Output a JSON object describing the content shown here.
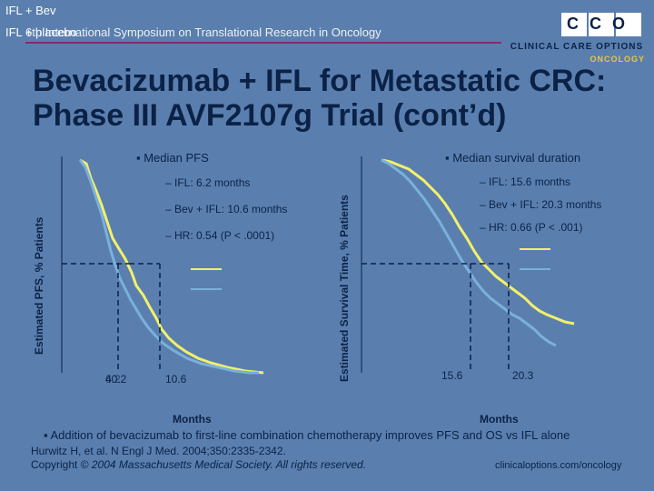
{
  "overlay": {
    "legend_top1": "IFL + Bev",
    "legend_top2": "IFL + placebo"
  },
  "header": {
    "conference": "6th International Symposium on Translational Research in Oncology",
    "logo_line1": "CLINICAL CARE OPTIONS",
    "logo_line2": "ONCOLOGY",
    "logo_letters": "CCO"
  },
  "slide": {
    "title_line1": "Bevacizumab + IFL for Metastatic CRC:",
    "title_line2": "Phase III AVF2107g Trial (cont’d)",
    "bottom_bullet": "▪ Addition of bevacizumab to first-line combination chemotherapy improves PFS and OS vs IFL alone",
    "citation_line1": "Hurwitz H, et al. N Engl J Med. 2004;350:2335-2342.",
    "citation_prefix": "Copyright © ",
    "citation_italic": "2004 Massachusetts Medical Society. All rights reserved.",
    "website": "clinicaloptions.com/oncology"
  },
  "colors": {
    "background": "#5a7faf",
    "bev_curve": "#f2f06a",
    "placebo_curve": "#7ab0dc",
    "title": "#0b2246",
    "accent_line": "#8a2a6a"
  },
  "chart_data": [
    {
      "type": "line",
      "title": "▪ Median PFS",
      "xlabel": "Months",
      "ylabel": "Estimated PFS, % Patients",
      "legend": [
        "– IFL: 6.2 months",
        "– Bev + IFL: 10.6 months",
        "– HR: 0.54 (P < .0001)"
      ],
      "x_ticks": [
        "6.2",
        "10.6"
      ],
      "overlap_tick_text": "40.2",
      "series": [
        {
          "name": "Bev + IFL",
          "median": 10.6
        },
        {
          "name": "IFL",
          "median": 6.2
        }
      ]
    },
    {
      "type": "line",
      "title": "▪ Median survival duration",
      "xlabel": "Months",
      "ylabel": "Estimated Survival Time, % Patients",
      "legend": [
        "– IFL: 15.6 months",
        "– Bev + IFL: 20.3 months",
        "– HR: 0.66 (P < .001)"
      ],
      "x_ticks": [
        "15.6",
        "20.3"
      ],
      "series": [
        {
          "name": "Bev + IFL",
          "median": 20.3
        },
        {
          "name": "IFL",
          "median": 15.6
        }
      ]
    }
  ]
}
